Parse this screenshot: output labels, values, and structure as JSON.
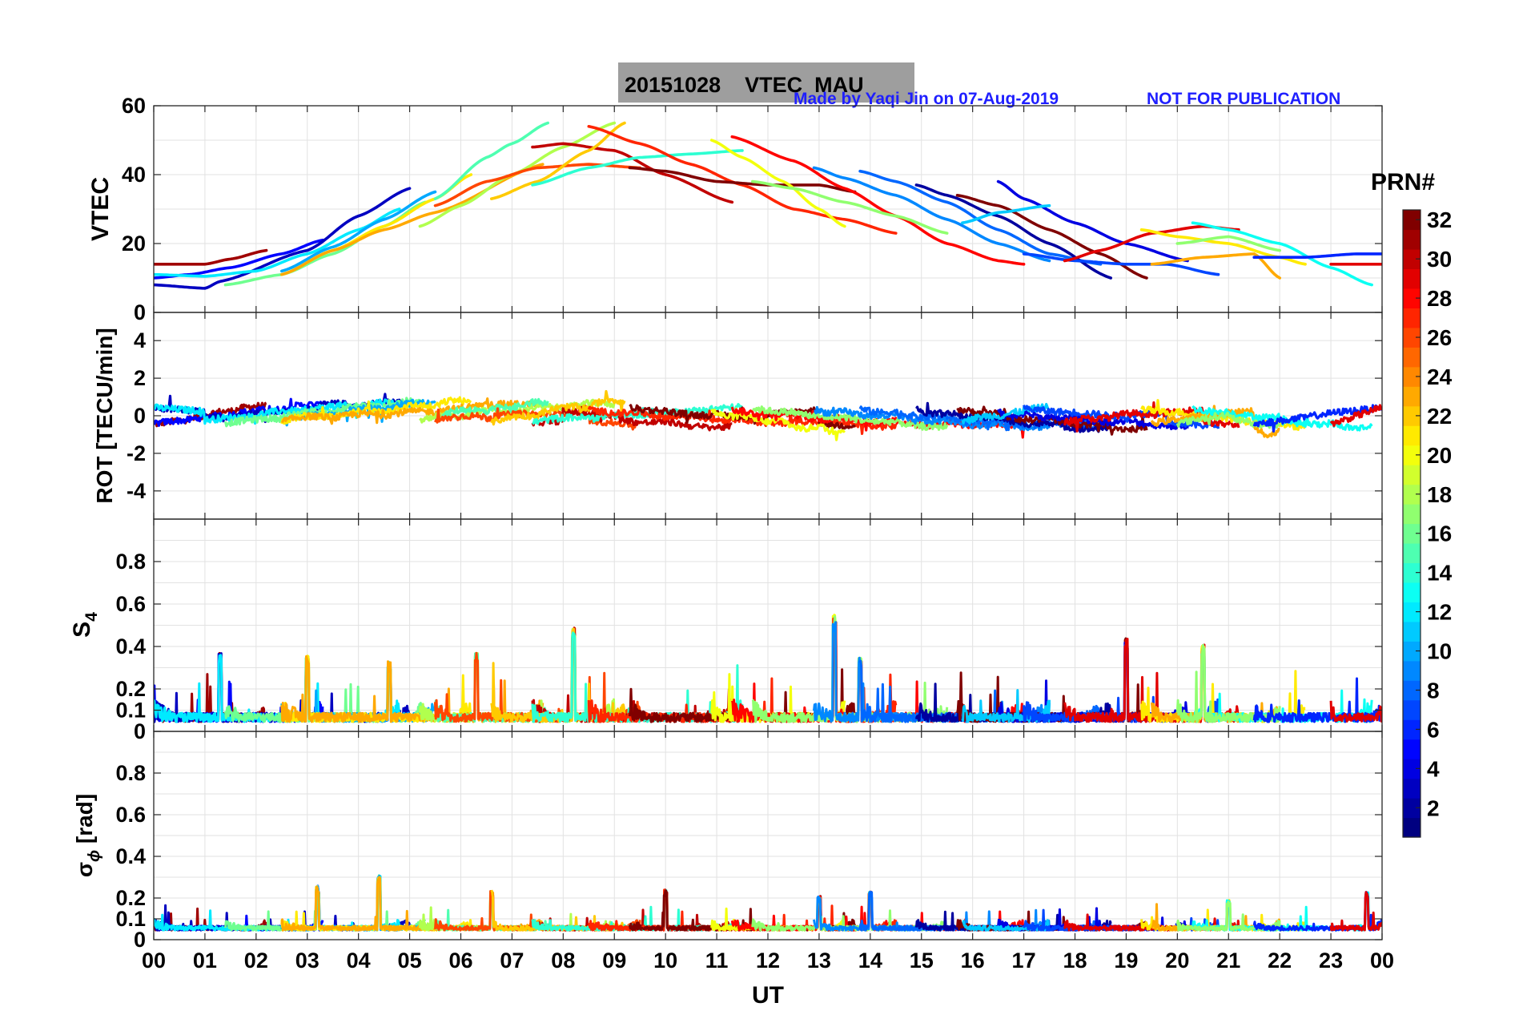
{
  "header": {
    "title": "20151028    VTEC  MAU",
    "credit": "Made by Yaqi Jin on 07-Aug-2019",
    "notice": "NOT FOR PUBLICATION",
    "title_bg": "#9e9e9e",
    "credit_color": "#1f1fff"
  },
  "chart_data": [
    {
      "type": "line",
      "ylabel": "VTEC",
      "ylim": [
        0,
        60
      ],
      "yticks": [
        "0",
        "20",
        "40",
        "60"
      ],
      "x": "UT hours 0-24",
      "grid": true,
      "series": [
        {
          "prn": 31,
          "x": [
            0.0,
            0.5,
            1.0,
            1.5,
            2.2
          ],
          "y": [
            14,
            14,
            14,
            15.5,
            18
          ]
        },
        {
          "prn": 5,
          "x": [
            0.0,
            0.7,
            1.5,
            2.5,
            3.3
          ],
          "y": [
            10,
            11,
            13,
            17,
            21
          ]
        },
        {
          "prn": 3,
          "x": [
            0.0,
            1.0,
            1.3,
            3.0,
            4.0,
            5.0
          ],
          "y": [
            8,
            7,
            9,
            18,
            28,
            36
          ]
        },
        {
          "prn": 12,
          "x": [
            0.0,
            1.0,
            2.0,
            3.0,
            4.0,
            4.8
          ],
          "y": [
            11,
            10.5,
            12,
            17,
            24,
            30
          ]
        },
        {
          "prn": 16,
          "x": [
            1.4,
            2.5,
            3.5,
            4.5,
            5.3
          ],
          "y": [
            8,
            11,
            17,
            25,
            32
          ]
        },
        {
          "prn": 10,
          "x": [
            2.5,
            3.5,
            4.5,
            5.5
          ],
          "y": [
            12,
            19,
            27,
            35
          ]
        },
        {
          "prn": 21,
          "x": [
            2.5,
            3.5,
            4.5,
            5.5,
            6.2
          ],
          "y": [
            11,
            18,
            25,
            33,
            40
          ]
        },
        {
          "prn": 23,
          "x": [
            2.5,
            3.5,
            4.5,
            5.5,
            7.6
          ],
          "y": [
            11,
            18,
            24,
            29,
            43
          ]
        },
        {
          "prn": 18,
          "x": [
            5.2,
            6.0,
            7.0,
            8.0,
            9.0
          ],
          "y": [
            25,
            31,
            40,
            48,
            55
          ]
        },
        {
          "prn": 15,
          "x": [
            5.5,
            6.5,
            7.0,
            7.7
          ],
          "y": [
            33,
            45,
            49,
            55
          ]
        },
        {
          "prn": 26,
          "x": [
            5.5,
            6.5,
            7.5,
            8.5,
            9.5
          ],
          "y": [
            31,
            38,
            42,
            43,
            42
          ]
        },
        {
          "prn": 30,
          "x": [
            7.4,
            8.0,
            9.0,
            10.0,
            11.3
          ],
          "y": [
            48,
            49,
            47,
            40,
            32
          ]
        },
        {
          "prn": 22,
          "x": [
            6.6,
            7.5,
            8.5,
            9.2
          ],
          "y": [
            33,
            38,
            47,
            55
          ]
        },
        {
          "prn": 14,
          "x": [
            7.4,
            8.5,
            9.5,
            10.5,
            11.5
          ],
          "y": [
            37,
            42,
            45,
            46,
            47
          ]
        },
        {
          "prn": 27,
          "x": [
            8.5,
            9.5,
            10.5,
            11.5,
            12.5,
            13.5,
            14.5
          ],
          "y": [
            54,
            49,
            43,
            37,
            30,
            27,
            23
          ]
        },
        {
          "prn": 32,
          "x": [
            9.3,
            10.0,
            11.0,
            12.0,
            13.0,
            13.7
          ],
          "y": [
            42,
            41,
            38,
            37,
            37,
            35
          ]
        },
        {
          "prn": 20,
          "x": [
            10.9,
            11.5,
            12.3,
            13.0,
            13.5
          ],
          "y": [
            50,
            45,
            38,
            30,
            25
          ]
        },
        {
          "prn": 28,
          "x": [
            11.3,
            12.5,
            13.5,
            14.5,
            15.5,
            16.5,
            17.0
          ],
          "y": [
            51,
            44,
            36,
            28,
            20,
            15,
            14
          ]
        },
        {
          "prn": 17,
          "x": [
            11.7,
            12.5,
            13.5,
            14.5,
            15.5
          ],
          "y": [
            38,
            36,
            32,
            28,
            23
          ]
        },
        {
          "prn": 9,
          "x": [
            12.9,
            13.5,
            14.5,
            15.5,
            16.5,
            17.5
          ],
          "y": [
            42,
            39,
            34,
            27,
            20,
            15
          ]
        },
        {
          "prn": 8,
          "x": [
            13.8,
            14.5,
            15.5,
            16.5,
            17.5,
            18.5
          ],
          "y": [
            41,
            38,
            32,
            24,
            17,
            14
          ]
        },
        {
          "prn": 2,
          "x": [
            14.9,
            15.5,
            16.5,
            17.5,
            18.7
          ],
          "y": [
            37,
            34,
            28,
            20,
            10
          ]
        },
        {
          "prn": 32,
          "x": [
            15.7,
            16.5,
            17.5,
            18.5,
            19.4
          ],
          "y": [
            34,
            31,
            24,
            17,
            10
          ]
        },
        {
          "prn": 4,
          "x": [
            16.5,
            17.0,
            18.0,
            19.0,
            20.2
          ],
          "y": [
            38,
            33,
            26,
            20,
            15
          ]
        },
        {
          "prn": 11,
          "x": [
            15.8,
            16.5,
            17.5
          ],
          "y": [
            26,
            29,
            31
          ]
        },
        {
          "prn": 7,
          "x": [
            17.0,
            18.0,
            19.0,
            19.8,
            20.8
          ],
          "y": [
            17,
            15,
            14,
            14,
            11
          ]
        },
        {
          "prn": 29,
          "x": [
            17.8,
            18.5,
            19.5,
            20.5,
            21.2
          ],
          "y": [
            15,
            18,
            23,
            25,
            24
          ]
        },
        {
          "prn": 21,
          "x": [
            19.3,
            20.0,
            21.0,
            22.0,
            22.5
          ],
          "y": [
            24,
            22,
            20,
            16,
            14
          ]
        },
        {
          "prn": 23,
          "x": [
            19.5,
            20.5,
            21.5,
            22.0
          ],
          "y": [
            14,
            16,
            17,
            10
          ]
        },
        {
          "prn": 13,
          "x": [
            20.3,
            21.0,
            22.0,
            23.0,
            23.8
          ],
          "y": [
            26,
            24,
            20,
            13,
            8
          ]
        },
        {
          "prn": 17,
          "x": [
            20.0,
            21.0,
            22.0
          ],
          "y": [
            20,
            22,
            18
          ]
        },
        {
          "prn": 6,
          "x": [
            21.5,
            22.5,
            23.5,
            24.0
          ],
          "y": [
            16,
            16,
            17,
            17
          ]
        },
        {
          "prn": 29,
          "x": [
            23.0,
            24.0
          ],
          "y": [
            14,
            14
          ]
        }
      ]
    },
    {
      "type": "line",
      "ylabel": "ROT [TECU/min]",
      "ylim": [
        -5.5,
        5.5
      ],
      "yticks": [
        "-4",
        "-2",
        "0",
        "2",
        "4"
      ],
      "grid": true,
      "note": "ROT traces hover near 0 with small excursions around -1 to +1 for each pass"
    },
    {
      "type": "line",
      "ylabel": "S4",
      "ylim": [
        0,
        1.0
      ],
      "yticks": [
        "0",
        "0.1",
        "0.2",
        "0.4",
        "0.6",
        "0.8"
      ],
      "grid": true,
      "notable_peaks": [
        {
          "x": 1.3,
          "y": 0.37
        },
        {
          "x": 3.0,
          "y": 0.36
        },
        {
          "x": 4.6,
          "y": 0.33
        },
        {
          "x": 6.3,
          "y": 0.37
        },
        {
          "x": 8.2,
          "y": 0.49
        },
        {
          "x": 13.3,
          "y": 0.55
        },
        {
          "x": 13.8,
          "y": 0.35
        },
        {
          "x": 19.0,
          "y": 0.44
        },
        {
          "x": 20.5,
          "y": 0.41
        }
      ]
    },
    {
      "type": "line",
      "ylabel": "σ_φ [rad]",
      "ylim": [
        0,
        1.0
      ],
      "yticks": [
        "0",
        "0.1",
        "0.2",
        "0.4",
        "0.6",
        "0.8"
      ],
      "grid": true,
      "notable_peaks": [
        {
          "x": 3.2,
          "y": 0.26
        },
        {
          "x": 4.4,
          "y": 0.31
        },
        {
          "x": 6.6,
          "y": 0.24
        },
        {
          "x": 10.0,
          "y": 0.24
        },
        {
          "x": 13.0,
          "y": 0.21
        },
        {
          "x": 14.0,
          "y": 0.23
        },
        {
          "x": 21.0,
          "y": 0.19
        },
        {
          "x": 23.7,
          "y": 0.23
        }
      ]
    }
  ],
  "xaxis": {
    "label": "UT",
    "ticks": [
      "00",
      "01",
      "02",
      "03",
      "04",
      "05",
      "06",
      "07",
      "08",
      "09",
      "10",
      "11",
      "12",
      "13",
      "14",
      "15",
      "16",
      "17",
      "18",
      "19",
      "20",
      "21",
      "22",
      "23",
      "00"
    ],
    "range": [
      0,
      24
    ]
  },
  "colorbar": {
    "title": "PRN#",
    "range": [
      1,
      32
    ],
    "ticks": [
      "2",
      "4",
      "6",
      "8",
      "10",
      "12",
      "14",
      "16",
      "18",
      "20",
      "22",
      "24",
      "26",
      "28",
      "30",
      "32"
    ],
    "colormap": "jet"
  }
}
